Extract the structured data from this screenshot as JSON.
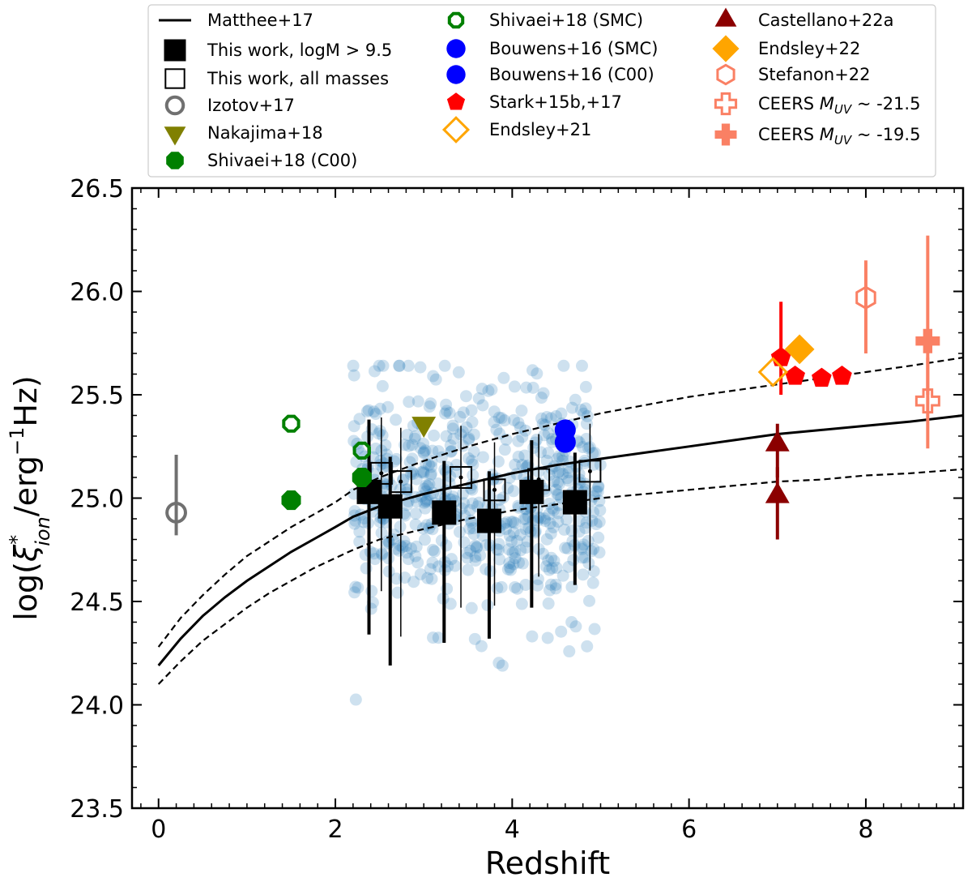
{
  "chart_data": {
    "type": "scatter",
    "title": "",
    "xlabel": "Redshift",
    "ylabel_parts": {
      "pre": "log(",
      "xi": "ξ",
      "star": "*",
      "sub": "ion",
      "mid": "/erg",
      "exp": "−1",
      "post": "Hz)"
    },
    "xlim": [
      -0.3,
      9.1
    ],
    "ylim": [
      23.5,
      26.5
    ],
    "x_ticks": [
      0,
      2,
      4,
      6,
      8
    ],
    "y_ticks": [
      23.5,
      24.0,
      24.5,
      25.0,
      25.5,
      26.0,
      26.5
    ],
    "x_tick_labels": [
      "0",
      "2",
      "4",
      "6",
      "8"
    ],
    "y_tick_labels": [
      "23.5",
      "24.0",
      "24.5",
      "25.0",
      "25.5",
      "26.0",
      "26.5"
    ],
    "legend_position": "top, above plot",
    "colors": {
      "black": "#000000",
      "scatter": "#1f77b4",
      "gray": "#707070",
      "olive": "#808000",
      "green": "#008000",
      "blue": "#0000ff",
      "red": "#ff0000",
      "orange": "#ffa500",
      "salmon": "#fa8064",
      "darkred": "#8b0000"
    },
    "series": [
      {
        "name": "Matthee+17",
        "kind": "line",
        "color": "black",
        "x": [
          0,
          0.25,
          0.5,
          0.75,
          1.0,
          1.25,
          1.5,
          1.75,
          2.0,
          2.2,
          2.5,
          3.0,
          3.5,
          4.0,
          4.5,
          5.0,
          5.5,
          6.0,
          6.5,
          7.0,
          7.5,
          8.0,
          8.5,
          9.1
        ],
        "y": [
          24.19,
          24.32,
          24.43,
          24.52,
          24.6,
          24.67,
          24.74,
          24.8,
          24.86,
          24.91,
          24.96,
          25.02,
          25.07,
          25.12,
          25.16,
          25.19,
          25.22,
          25.25,
          25.28,
          25.31,
          25.33,
          25.35,
          25.37,
          25.4
        ]
      },
      {
        "name": "Matthee+17 upper",
        "kind": "dashed",
        "color": "black",
        "x": [
          0,
          0.25,
          0.5,
          0.75,
          1.0,
          1.25,
          1.5,
          1.75,
          2.0,
          2.2,
          2.5,
          3.0,
          3.5,
          4.0,
          4.5,
          5.0,
          5.5,
          6.0,
          6.5,
          7.0,
          7.5,
          8.0,
          8.5,
          9.1
        ],
        "y": [
          24.28,
          24.42,
          24.53,
          24.63,
          24.72,
          24.79,
          24.86,
          24.92,
          24.98,
          25.04,
          25.1,
          25.18,
          25.25,
          25.31,
          25.36,
          25.41,
          25.45,
          25.49,
          25.52,
          25.55,
          25.58,
          25.61,
          25.64,
          25.68
        ]
      },
      {
        "name": "Matthee+17 lower",
        "kind": "dashed",
        "color": "black",
        "x": [
          0,
          0.25,
          0.5,
          0.75,
          1.0,
          1.25,
          1.5,
          1.75,
          2.0,
          2.2,
          2.5,
          3.0,
          3.5,
          4.0,
          4.5,
          5.0,
          5.5,
          6.0,
          6.5,
          7.0,
          7.5,
          8.0,
          8.5,
          9.1
        ],
        "y": [
          24.1,
          24.21,
          24.31,
          24.39,
          24.47,
          24.54,
          24.6,
          24.66,
          24.71,
          24.75,
          24.8,
          24.85,
          24.9,
          24.94,
          24.97,
          25.0,
          25.02,
          25.04,
          25.06,
          25.08,
          25.09,
          25.11,
          25.12,
          25.14
        ]
      },
      {
        "name": "This work, logM > 9.5",
        "kind": "filled-square",
        "color": "black",
        "points": [
          {
            "x": 2.38,
            "y": 25.03,
            "lo": 24.34,
            "hi": 25.38
          },
          {
            "x": 2.62,
            "y": 24.96,
            "lo": 24.19,
            "hi": 25.2
          },
          {
            "x": 3.23,
            "y": 24.93,
            "lo": 24.3,
            "hi": 25.18
          },
          {
            "x": 3.74,
            "y": 24.89,
            "lo": 24.32,
            "hi": 25.13
          },
          {
            "x": 4.22,
            "y": 25.03,
            "lo": 24.47,
            "hi": 25.28
          },
          {
            "x": 4.71,
            "y": 24.98,
            "lo": 24.58,
            "hi": 25.22
          }
        ]
      },
      {
        "name": "This work, all masses",
        "kind": "open-square",
        "color": "black",
        "points": [
          {
            "x": 2.52,
            "y": 25.12,
            "lo": 24.55,
            "hi": 25.39
          },
          {
            "x": 2.74,
            "y": 25.08,
            "lo": 24.33,
            "hi": 25.34
          },
          {
            "x": 3.42,
            "y": 25.1,
            "lo": 24.47,
            "hi": 25.35
          },
          {
            "x": 3.8,
            "y": 25.04,
            "lo": 24.48,
            "hi": 25.27
          },
          {
            "x": 4.3,
            "y": 25.09,
            "lo": 24.62,
            "hi": 25.31
          },
          {
            "x": 4.88,
            "y": 25.13,
            "lo": 24.65,
            "hi": 25.36
          }
        ]
      },
      {
        "name": "Izotov+17",
        "kind": "open-circle",
        "color": "gray",
        "points": [
          {
            "x": 0.2,
            "y": 24.93,
            "lo": 24.82,
            "hi": 25.21
          }
        ]
      },
      {
        "name": "Nakajima+18",
        "kind": "down-triangle",
        "color": "olive",
        "points": [
          {
            "x": 3.0,
            "y": 25.36
          }
        ]
      },
      {
        "name": "Shivaei+18 (C00)",
        "kind": "octagon",
        "color": "green",
        "points": [
          {
            "x": 1.5,
            "y": 24.99
          },
          {
            "x": 2.3,
            "y": 25.1
          }
        ]
      },
      {
        "name": "Shivaei+18 (SMC)",
        "kind": "open-octagon",
        "color": "green",
        "points": [
          {
            "x": 1.5,
            "y": 25.36
          },
          {
            "x": 2.3,
            "y": 25.23
          }
        ]
      },
      {
        "name": "Bouwens+16 (SMC)",
        "kind": "filled-circle",
        "color": "blue",
        "points": [
          {
            "x": 4.6,
            "y": 25.33
          }
        ]
      },
      {
        "name": "Bouwens+16 (C00)",
        "kind": "filled-circle",
        "color": "blue",
        "points": [
          {
            "x": 4.6,
            "y": 25.27
          }
        ]
      },
      {
        "name": "Stark+15b,+17",
        "kind": "pentagon",
        "color": "red",
        "points": [
          {
            "x": 7.04,
            "y": 25.68,
            "lo": 25.5,
            "hi": 25.95
          },
          {
            "x": 7.2,
            "y": 25.59
          },
          {
            "x": 7.5,
            "y": 25.58
          },
          {
            "x": 7.73,
            "y": 25.59
          }
        ]
      },
      {
        "name": "Endsley+21",
        "kind": "open-diamond",
        "color": "orange",
        "points": [
          {
            "x": 6.95,
            "y": 25.61
          }
        ]
      },
      {
        "name": "Castellano+22a",
        "kind": "up-triangle",
        "color": "darkred",
        "points": [
          {
            "x": 7.0,
            "y": 25.26,
            "lo": 25.1,
            "hi": 25.36
          },
          {
            "x": 7.0,
            "y": 25.01,
            "lo": 24.8,
            "hi": 25.15
          }
        ]
      },
      {
        "name": "Endsley+22",
        "kind": "diamond",
        "color": "orange",
        "points": [
          {
            "x": 7.25,
            "y": 25.72
          }
        ]
      },
      {
        "name": "Stefanon+22",
        "kind": "open-hexagon",
        "color": "salmon",
        "points": [
          {
            "x": 8.0,
            "y": 25.97,
            "lo": 25.7,
            "hi": 26.15
          }
        ]
      },
      {
        "name": "CEERS M_UV ~ -21.5",
        "kind": "open-plus",
        "color": "salmon",
        "points": [
          {
            "x": 8.7,
            "y": 25.47,
            "lo": 25.24,
            "hi": 25.68
          }
        ]
      },
      {
        "name": "CEERS M_UV ~ -19.5",
        "kind": "filled-plus",
        "color": "salmon",
        "points": [
          {
            "x": 8.7,
            "y": 25.76,
            "lo": 25.5,
            "hi": 26.27
          }
        ]
      }
    ],
    "legend": [
      {
        "marker": "line",
        "color": "black",
        "text": "Matthee+17"
      },
      {
        "marker": "filled-square",
        "color": "black",
        "text": "This work, logM > 9.5"
      },
      {
        "marker": "open-square",
        "color": "black",
        "text": "This work, all masses"
      },
      {
        "marker": "open-circle",
        "color": "gray",
        "text": "Izotov+17"
      },
      {
        "marker": "down-triangle",
        "color": "olive",
        "text": "Nakajima+18"
      },
      {
        "marker": "octagon",
        "color": "green",
        "text": "Shivaei+18 (C00)"
      },
      {
        "marker": "open-octagon",
        "color": "green",
        "text": "Shivaei+18 (SMC)"
      },
      {
        "marker": "filled-circle",
        "color": "blue",
        "text": "Bouwens+16 (SMC)"
      },
      {
        "marker": "filled-circle",
        "color": "blue",
        "text": "Bouwens+16 (C00)"
      },
      {
        "marker": "pentagon",
        "color": "red",
        "text": "Stark+15b,+17"
      },
      {
        "marker": "open-diamond",
        "color": "orange",
        "text": "Endsley+21"
      },
      {
        "marker": "up-triangle",
        "color": "darkred",
        "text": "Castellano+22a"
      },
      {
        "marker": "diamond",
        "color": "orange",
        "text": "Endsley+22"
      },
      {
        "marker": "open-hexagon",
        "color": "salmon",
        "text": "Stefanon+22"
      },
      {
        "marker": "open-plus",
        "color": "salmon",
        "text_pre": "CEERS ",
        "text_var": "M",
        "text_sub": "UV",
        "text_post": " ~ -21.5"
      },
      {
        "marker": "filled-plus",
        "color": "salmon",
        "text_pre": "CEERS ",
        "text_var": "M",
        "text_sub": "UV",
        "text_post": " ~ -19.5"
      }
    ],
    "background_sample": {
      "name": "individual galaxies (this work)",
      "color": "scatter",
      "count": 600,
      "x_range": [
        2.2,
        5.0
      ],
      "y_mean": 25.0,
      "y_sigma": 0.28,
      "y_min": 23.96,
      "y_max": 25.64
    }
  }
}
